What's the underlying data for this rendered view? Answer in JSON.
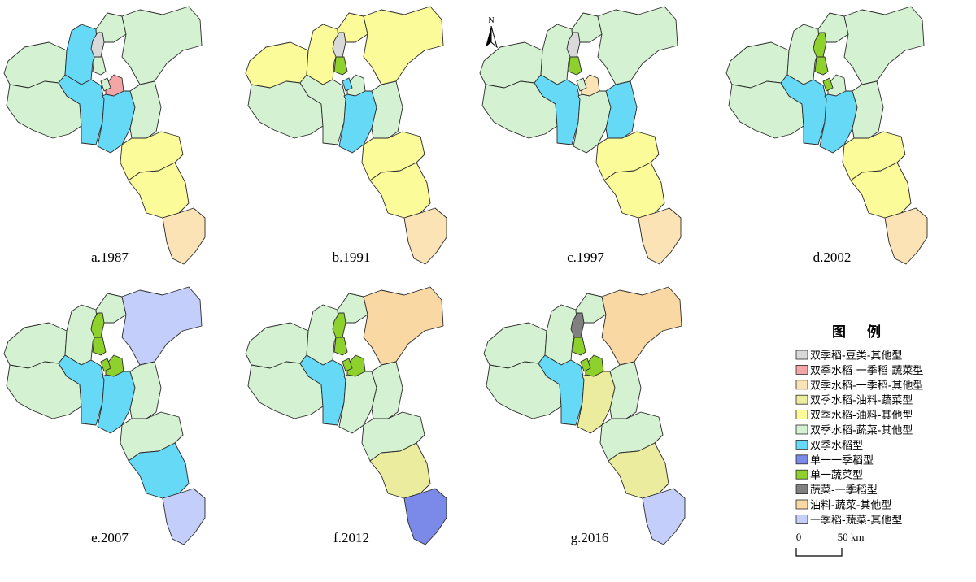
{
  "types": {
    "t1": {
      "label": "双季稻-豆类-其他型",
      "color": "#d9d9d9"
    },
    "t2": {
      "label": "双季水稻-一季稻-蔬菜型",
      "color": "#f4a6a6"
    },
    "t3": {
      "label": "双季水稻-一季稻-其他型",
      "color": "#fbe3b5"
    },
    "t4": {
      "label": "双季水稻-油料-蔬菜型",
      "color": "#ecec9f"
    },
    "t5": {
      "label": "双季水稻-油料-其他型",
      "color": "#fbfb9a"
    },
    "t6": {
      "label": "双季水稻-蔬菜-其他型",
      "color": "#d4f2d2"
    },
    "t7": {
      "label": "双季水稻型",
      "color": "#66d9f7"
    },
    "t8": {
      "label": "单一一季稻型",
      "color": "#7b8ae8"
    },
    "t9": {
      "label": "单一蔬菜型",
      "color": "#8fd12c"
    },
    "t10": {
      "label": "蔬菜-一季稻型",
      "color": "#808080"
    },
    "t11": {
      "label": "油料-蔬菜-其他型",
      "color": "#fad8a3"
    },
    "t12": {
      "label": "一季稻-蔬菜-其他型",
      "color": "#c3cffa"
    }
  },
  "legend": {
    "title": "图  例",
    "order": [
      "t1",
      "t2",
      "t3",
      "t4",
      "t5",
      "t6",
      "t7",
      "t8",
      "t9",
      "t10",
      "t11",
      "t12"
    ]
  },
  "scale": {
    "zero": "0",
    "end": "50 km"
  },
  "north": "N",
  "maps": [
    {
      "label": "a.1987",
      "fill": {
        "W": "t6",
        "NW": "t7",
        "N1": "t6",
        "NE": "t6",
        "SW": "t6",
        "CW": "t7",
        "C": "t7",
        "CE": "t6",
        "S1": "t5",
        "S2": "t5",
        "S3": "t3",
        "I1": "t1",
        "I2": "t6",
        "I3": "t2",
        "I4": "t6"
      }
    },
    {
      "label": "b.1991",
      "fill": {
        "W": "t5",
        "NW": "t5",
        "N1": "t5",
        "NE": "t5",
        "SW": "t6",
        "CW": "t6",
        "C": "t7",
        "CE": "t6",
        "S1": "t5",
        "S2": "t5",
        "S3": "t3",
        "I1": "t1",
        "I2": "t9",
        "I3": "t6",
        "I4": "t7"
      }
    },
    {
      "label": "c.1997",
      "fill": {
        "W": "t6",
        "NW": "t6",
        "N1": "t6",
        "NE": "t6",
        "SW": "t6",
        "CW": "t7",
        "C": "t6",
        "CE": "t7",
        "S1": "t5",
        "S2": "t5",
        "S3": "t3",
        "I1": "t1",
        "I2": "t9",
        "I3": "t3",
        "I4": "t6"
      }
    },
    {
      "label": "d.2002",
      "fill": {
        "W": "t6",
        "NW": "t6",
        "N1": "t6",
        "NE": "t6",
        "SW": "t6",
        "CW": "t7",
        "C": "t7",
        "CE": "t6",
        "S1": "t5",
        "S2": "t5",
        "S3": "t3",
        "I1": "t9",
        "I2": "t9",
        "I3": "t6",
        "I4": "t9"
      }
    },
    {
      "label": "e.2007",
      "fill": {
        "W": "t6",
        "NW": "t6",
        "N1": "t6",
        "NE": "t12",
        "SW": "t6",
        "CW": "t7",
        "C": "t7",
        "CE": "t6",
        "S1": "t6",
        "S2": "t7",
        "S3": "t12",
        "I1": "t9",
        "I2": "t9",
        "I3": "t9",
        "I4": "t9"
      }
    },
    {
      "label": "f.2012",
      "fill": {
        "W": "t6",
        "NW": "t6",
        "N1": "t6",
        "NE": "t11",
        "SW": "t6",
        "CW": "t7",
        "C": "t6",
        "CE": "t6",
        "S1": "t6",
        "S2": "t4",
        "S3": "t8",
        "I1": "t9",
        "I2": "t9",
        "I3": "t9",
        "I4": "t9"
      }
    },
    {
      "label": "g.2016",
      "fill": {
        "W": "t6",
        "NW": "t6",
        "N1": "t6",
        "NE": "t11",
        "SW": "t6",
        "CW": "t7",
        "C": "t4",
        "CE": "t6",
        "S1": "t6",
        "S2": "t4",
        "S3": "t12",
        "I1": "t10",
        "I2": "t9",
        "I3": "t9",
        "I4": "t9"
      }
    }
  ]
}
